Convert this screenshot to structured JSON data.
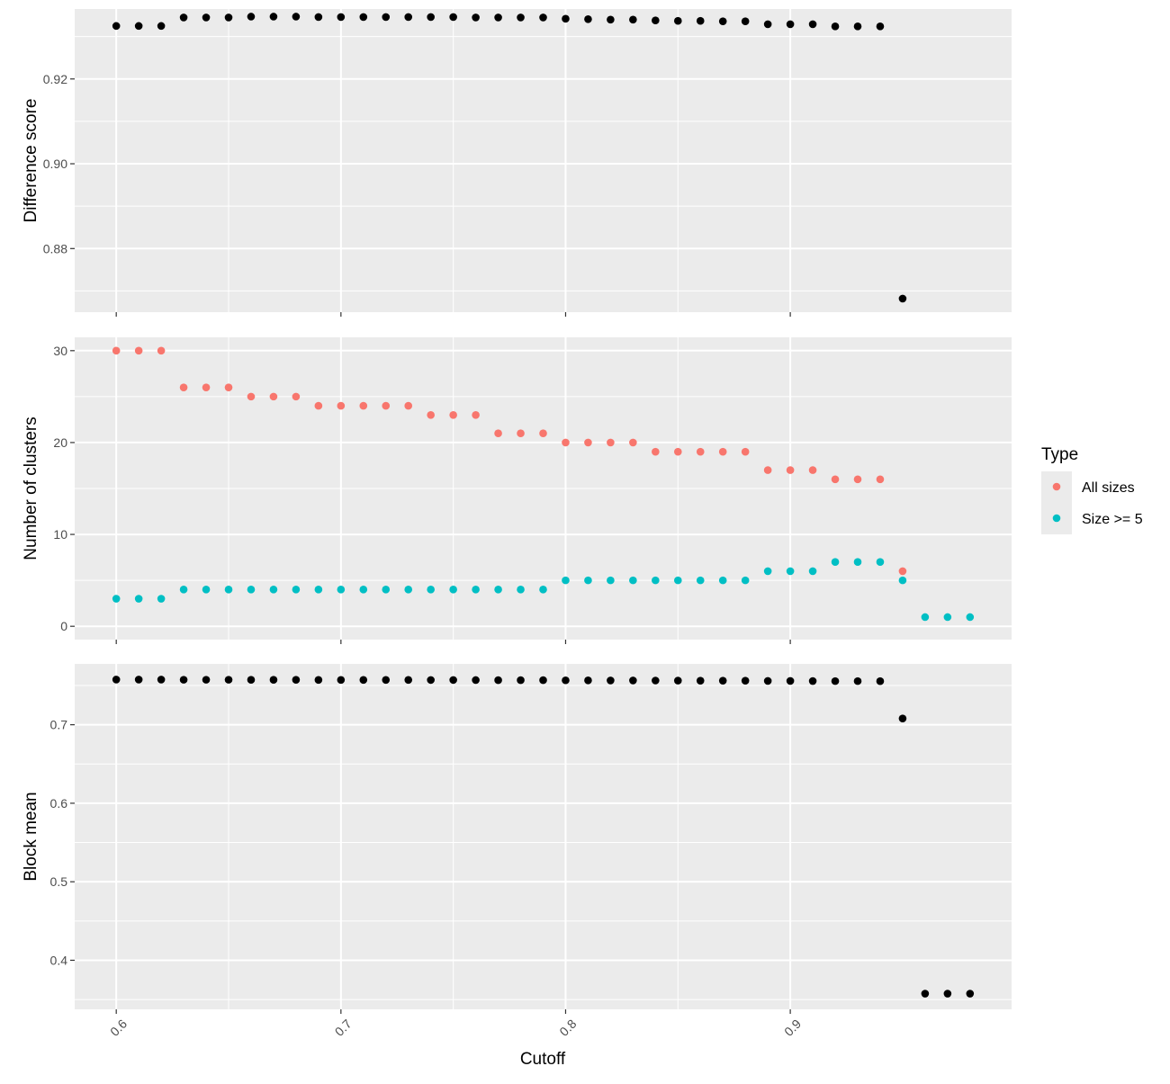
{
  "chart_data": {
    "type": "scatter",
    "xlabel": "Cutoff",
    "x_ticks": [
      0.6,
      0.7,
      0.8,
      0.9
    ],
    "xlim": [
      0.5815,
      0.9985
    ],
    "x": [
      0.6,
      0.61,
      0.62,
      0.63,
      0.64,
      0.65,
      0.66,
      0.67,
      0.68,
      0.69,
      0.7,
      0.71,
      0.72,
      0.73,
      0.74,
      0.75,
      0.76,
      0.77,
      0.78,
      0.79,
      0.8,
      0.81,
      0.82,
      0.83,
      0.84,
      0.85,
      0.86,
      0.87,
      0.88,
      0.89,
      0.9,
      0.91,
      0.92,
      0.93,
      0.94,
      0.95,
      0.96,
      0.97,
      0.98
    ],
    "background": "#ebebeb",
    "grid": true,
    "legend": {
      "title": "Type",
      "placement": "right",
      "entries": [
        {
          "label": "All sizes",
          "color": "#f8766d"
        },
        {
          "label": "Size >= 5",
          "color": "#00bfc4"
        }
      ]
    },
    "panels": [
      {
        "ylabel": "Difference score",
        "ylim": [
          0.865,
          0.9365
        ],
        "y_ticks": [
          0.88,
          0.9,
          0.92
        ],
        "y_tick_labels": [
          "0.88",
          "0.90",
          "0.92"
        ],
        "series": [
          {
            "color": "#000000",
            "values": [
              0.9325,
              0.9325,
              0.9325,
              0.9345,
              0.9345,
              0.9345,
              0.9347,
              0.9347,
              0.9347,
              0.9346,
              0.9346,
              0.9346,
              0.9346,
              0.9346,
              0.9346,
              0.9346,
              0.9345,
              0.9345,
              0.9345,
              0.9345,
              0.9342,
              0.9341,
              0.934,
              0.934,
              0.9338,
              0.9337,
              0.9337,
              0.9336,
              0.9336,
              0.9329,
              0.9329,
              0.9329,
              0.9324,
              0.9324,
              0.9324,
              0.8682,
              null,
              null,
              null
            ]
          }
        ]
      },
      {
        "ylabel": "Number of clusters",
        "ylim": [
          -1.45,
          31.45
        ],
        "y_ticks": [
          0,
          10,
          20,
          30
        ],
        "y_tick_labels": [
          "0",
          "10",
          "20",
          "30"
        ],
        "series": [
          {
            "name": "All sizes",
            "color": "#f8766d",
            "values": [
              30,
              30,
              30,
              26,
              26,
              26,
              25,
              25,
              25,
              24,
              24,
              24,
              24,
              24,
              23,
              23,
              23,
              21,
              21,
              21,
              20,
              20,
              20,
              20,
              19,
              19,
              19,
              19,
              19,
              17,
              17,
              17,
              16,
              16,
              16,
              6,
              null,
              null,
              null
            ]
          },
          {
            "name": "Size >= 5",
            "color": "#00bfc4",
            "values": [
              3,
              3,
              3,
              4,
              4,
              4,
              4,
              4,
              4,
              4,
              4,
              4,
              4,
              4,
              4,
              4,
              4,
              4,
              4,
              4,
              5,
              5,
              5,
              5,
              5,
              5,
              5,
              5,
              5,
              6,
              6,
              6,
              7,
              7,
              7,
              5,
              1,
              1,
              1
            ]
          }
        ]
      },
      {
        "ylabel": "Block mean",
        "ylim": [
          0.3375,
          0.7775
        ],
        "y_ticks": [
          0.4,
          0.5,
          0.6,
          0.7
        ],
        "y_tick_labels": [
          "0.4",
          "0.5",
          "0.6",
          "0.7"
        ],
        "series": [
          {
            "color": "#000000",
            "values": [
              0.7575,
              0.7575,
              0.7575,
              0.7573,
              0.7573,
              0.7573,
              0.7572,
              0.7572,
              0.7572,
              0.7571,
              0.7571,
              0.7571,
              0.7571,
              0.7571,
              0.757,
              0.757,
              0.7569,
              0.7568,
              0.7568,
              0.7568,
              0.7566,
              0.7565,
              0.7564,
              0.7564,
              0.7563,
              0.7562,
              0.7561,
              0.7561,
              0.7561,
              0.7558,
              0.7558,
              0.7557,
              0.7556,
              0.7556,
              0.7555,
              0.708,
              0.3575,
              0.3575,
              0.3575
            ]
          }
        ]
      }
    ]
  }
}
